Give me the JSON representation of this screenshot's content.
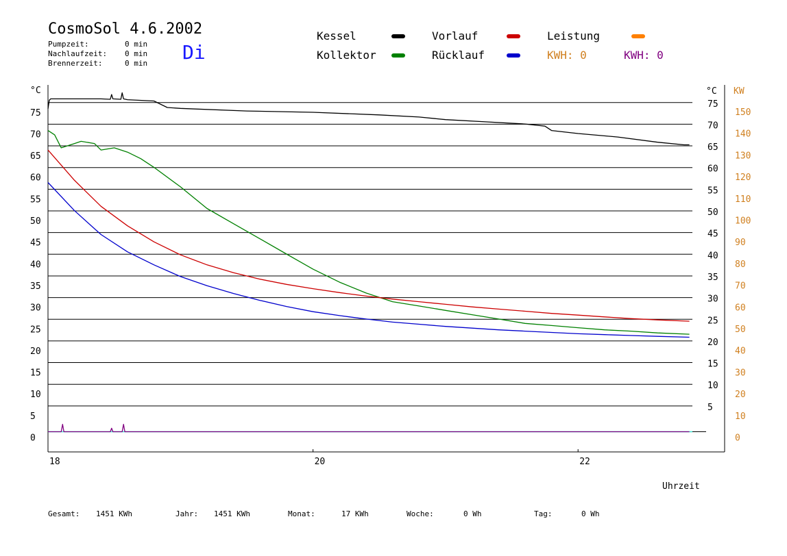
{
  "header": {
    "title": "CosmoSol 4.6.2002",
    "day": "Di",
    "pumpzeit_label": "Pumpzeit:",
    "pumpzeit_value": "0 min",
    "nachlaufzeit_label": "Nachlaufzeit:",
    "nachlaufzeit_value": "0 min",
    "brennerzeit_label": "Brennerzeit:",
    "brennerzeit_value": "0 min"
  },
  "legend": {
    "kessel": "Kessel",
    "kollektor": "Kollektor",
    "vorlauf": "Vorlauf",
    "ruecklauf": "Rücklauf",
    "leistung": "Leistung",
    "kwh_orange": "KWH: 0",
    "kwh_purple": "KWH: 0"
  },
  "colors": {
    "kessel": "#000000",
    "kollektor": "#008000",
    "vorlauf": "#cc0000",
    "ruecklauf": "#0000cc",
    "leistung": "#ff8000",
    "kwh_purple": "#800080",
    "baseline": "#40e0d0",
    "right_kw": "#d08020",
    "day": "#1a1aff"
  },
  "footer": {
    "gesamt_label": "Gesamt:",
    "gesamt_value": "1451 KWh",
    "jahr_label": "Jahr:",
    "jahr_value": "1451 KWh",
    "monat_label": "Monat:",
    "monat_value": "17 KWh",
    "woche_label": "Woche:",
    "woche_value": "0 Wh",
    "tag_label": "Tag:",
    "tag_value": "0 Wh"
  },
  "chart_data": {
    "type": "line",
    "xlabel": "Uhrzeit",
    "ylabel_left": "°C",
    "ylabel_right": "°C",
    "ylabel_right2": "KW",
    "xlim": [
      18,
      22.95
    ],
    "ylim": [
      -5,
      80
    ],
    "x_ticks": [
      18,
      20,
      22
    ],
    "y_ticks": [
      0,
      5,
      10,
      15,
      20,
      25,
      30,
      35,
      40,
      45,
      50,
      55,
      60,
      65,
      70,
      75
    ],
    "right_y_ticks": [
      5,
      10,
      15,
      20,
      25,
      30,
      35,
      40,
      45,
      50,
      55,
      60,
      65,
      70,
      75
    ],
    "kw_ticks": [
      0,
      10,
      20,
      30,
      40,
      50,
      60,
      70,
      80,
      90,
      100,
      110,
      120,
      130,
      140,
      150
    ],
    "series": [
      {
        "name": "Kessel",
        "color_key": "kessel",
        "x": [
          18.0,
          18.01,
          18.02,
          18.4,
          18.47,
          18.48,
          18.49,
          18.55,
          18.56,
          18.57,
          18.6,
          18.8,
          18.9,
          19.0,
          19.5,
          20.0,
          20.5,
          20.8,
          21.0,
          21.3,
          21.6,
          21.75,
          21.8,
          22.0,
          22.3,
          22.6,
          22.8,
          22.84
        ],
        "y": [
          74.5,
          76.5,
          76.8,
          76.8,
          76.7,
          77.8,
          76.8,
          76.7,
          78.2,
          76.8,
          76.6,
          76.3,
          74.8,
          74.6,
          74.0,
          73.7,
          73.1,
          72.6,
          72.0,
          71.5,
          71.0,
          70.5,
          69.5,
          68.8,
          68.0,
          66.8,
          66.2,
          66.2
        ]
      },
      {
        "name": "Kollektor",
        "color_key": "kollektor",
        "x": [
          18.0,
          18.05,
          18.1,
          18.2,
          18.25,
          18.35,
          18.4,
          18.5,
          18.6,
          18.7,
          18.8,
          19.0,
          19.2,
          19.4,
          19.6,
          19.8,
          20.0,
          20.2,
          20.4,
          20.6,
          20.8,
          21.0,
          21.2,
          21.4,
          21.6,
          21.8,
          22.0,
          22.2,
          22.4,
          22.6,
          22.84
        ],
        "y": [
          69.5,
          68.5,
          65.5,
          66.5,
          67.0,
          66.5,
          65.0,
          65.5,
          64.5,
          63.0,
          61.0,
          56.5,
          51.5,
          48.0,
          44.5,
          41.0,
          37.5,
          34.5,
          32.0,
          30.0,
          29.0,
          28.0,
          27.0,
          26.0,
          25.0,
          24.5,
          24.0,
          23.5,
          23.2,
          22.8,
          22.5
        ]
      },
      {
        "name": "Vorlauf",
        "color_key": "vorlauf",
        "x": [
          18.0,
          18.2,
          18.4,
          18.6,
          18.8,
          19.0,
          19.2,
          19.4,
          19.6,
          19.8,
          20.0,
          20.2,
          20.4,
          20.6,
          20.8,
          21.0,
          21.2,
          21.4,
          21.6,
          21.8,
          22.0,
          22.2,
          22.4,
          22.6,
          22.84
        ],
        "y": [
          65.0,
          58.0,
          52.0,
          47.5,
          43.8,
          40.8,
          38.5,
          36.7,
          35.2,
          34.0,
          33.0,
          32.1,
          31.3,
          30.6,
          30.0,
          29.4,
          28.8,
          28.3,
          27.8,
          27.3,
          26.9,
          26.5,
          26.1,
          25.8,
          25.5
        ]
      },
      {
        "name": "Rücklauf",
        "color_key": "ruecklauf",
        "x": [
          18.0,
          18.2,
          18.4,
          18.6,
          18.8,
          19.0,
          19.2,
          19.4,
          19.6,
          19.8,
          20.0,
          20.2,
          20.4,
          20.6,
          20.8,
          21.0,
          21.2,
          21.4,
          21.6,
          21.8,
          22.0,
          22.2,
          22.4,
          22.6,
          22.84
        ],
        "y": [
          57.5,
          51.0,
          45.5,
          41.5,
          38.5,
          35.8,
          33.7,
          31.9,
          30.3,
          28.9,
          27.7,
          26.8,
          26.0,
          25.3,
          24.8,
          24.3,
          23.9,
          23.5,
          23.2,
          22.9,
          22.6,
          22.4,
          22.2,
          22.0,
          21.8
        ]
      },
      {
        "name": "Leistung",
        "color_key": "kwh_purple",
        "x": [
          18.0,
          18.1,
          18.11,
          18.12,
          18.47,
          18.48,
          18.49,
          18.56,
          18.57,
          18.58,
          22.84
        ],
        "y": [
          0,
          0,
          1.7,
          0,
          0,
          0.8,
          0,
          0,
          1.7,
          0,
          0
        ]
      }
    ]
  }
}
